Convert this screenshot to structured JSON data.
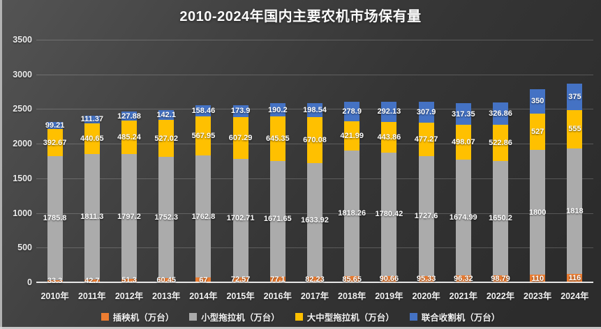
{
  "chart_data": {
    "type": "bar",
    "stacked": true,
    "title": "2010-2024年国内主要农机市场保有量",
    "unit": "万台",
    "categories": [
      "2010年",
      "2011年",
      "2012年",
      "2013年",
      "2014年",
      "2015年",
      "2016年",
      "2017年",
      "2018年",
      "2019年",
      "2020年",
      "2021年",
      "2022年",
      "2023年",
      "2024年"
    ],
    "series": [
      {
        "name": "插秧机（万台）",
        "color": "#ED7D31",
        "values": [
          33.3,
          42.7,
          51.3,
          60.45,
          67,
          72.57,
          77.1,
          82.23,
          85.65,
          90.66,
          95.33,
          96.32,
          98.79,
          110,
          116
        ]
      },
      {
        "name": "小型拖拉机（万台）",
        "color": "#ABABAB",
        "values": [
          1785.8,
          1811.3,
          1797.2,
          1752.3,
          1762.8,
          1702.71,
          1671.65,
          1633.92,
          1818.26,
          1780.42,
          1727.6,
          1674.99,
          1650.2,
          1800,
          1818
        ]
      },
      {
        "name": "大中型拖拉机（万台）",
        "color": "#FFC000",
        "values": [
          392.67,
          440.65,
          485.24,
          527.02,
          567.95,
          607.29,
          645.35,
          670.08,
          421.99,
          443.86,
          477.27,
          498.07,
          522.86,
          527,
          555
        ]
      },
      {
        "name": "联合收割机（万台）",
        "color": "#4472C4",
        "values": [
          99.21,
          111.37,
          127.88,
          142.1,
          158.46,
          173.9,
          190.2,
          198.54,
          278.9,
          292.13,
          307.9,
          317.35,
          326.86,
          350,
          375
        ]
      }
    ],
    "y_ticks": [
      0,
      500,
      1000,
      1500,
      2000,
      2500,
      3000,
      3500
    ],
    "ylim": [
      0,
      3500
    ],
    "grid": true,
    "legend_position": "bottom",
    "colors": {
      "background_top": "#545454",
      "background_bottom": "#2c2c2c",
      "gridline": "rgba(255,255,255,0.20)",
      "axis": "#f5f5f5",
      "label_text": "#ffffff"
    }
  }
}
